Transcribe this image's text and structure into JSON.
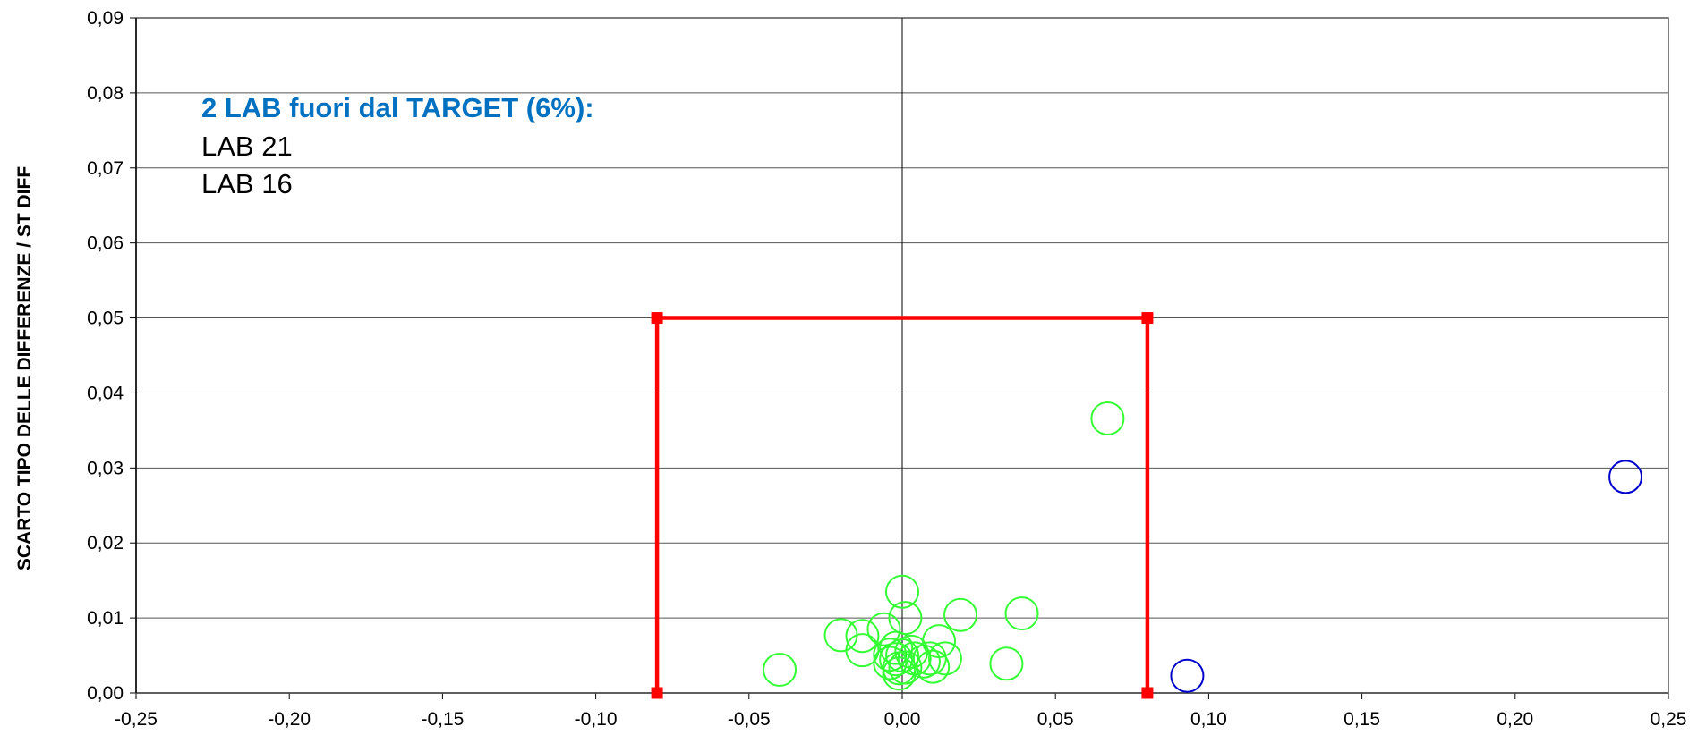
{
  "chart_data": {
    "type": "scatter",
    "title": "",
    "xlabel": "",
    "ylabel": "SCARTO TIPO DELLE DIFFERENZE / ST DIFF",
    "xlim": [
      -0.25,
      0.25
    ],
    "ylim": [
      0,
      0.09
    ],
    "xticks": [
      "-0,25",
      "-0,20",
      "-0,15",
      "-0,10",
      "-0,05",
      "0,00",
      "0,05",
      "0,10",
      "0,15",
      "0,20",
      "0,25"
    ],
    "yticks": [
      "0,00",
      "0,01",
      "0,02",
      "0,03",
      "0,04",
      "0,05",
      "0,06",
      "0,07",
      "0,08",
      "0,09"
    ],
    "grid": true,
    "target_box": {
      "color": "#FF0000",
      "points": [
        [
          -0.08,
          0
        ],
        [
          -0.08,
          0.05
        ],
        [
          0.08,
          0.05
        ],
        [
          0.08,
          0
        ]
      ]
    },
    "series": [
      {
        "color": "#33FF33",
        "points": [
          [
            -0.04,
            0.0031
          ],
          [
            -0.02,
            0.0077
          ],
          [
            -0.013,
            0.0076
          ],
          [
            -0.013,
            0.0057
          ],
          [
            -0.006,
            0.0085
          ],
          [
            -0.004,
            0.0051
          ],
          [
            -0.004,
            0.004
          ],
          [
            -0.002,
            0.006
          ],
          [
            -0.002,
            0.0045
          ],
          [
            -0.001,
            0.0033
          ],
          [
            -0.001,
            0.0026
          ],
          [
            0.0,
            0.0135
          ],
          [
            0.0,
            0.005
          ],
          [
            0.001,
            0.0034
          ],
          [
            0.001,
            0.01
          ],
          [
            0.003,
            0.0055
          ],
          [
            0.004,
            0.0046
          ],
          [
            0.007,
            0.0042
          ],
          [
            0.009,
            0.0046
          ],
          [
            0.01,
            0.0035
          ],
          [
            0.012,
            0.0069
          ],
          [
            0.014,
            0.0046
          ],
          [
            0.019,
            0.0104
          ],
          [
            0.034,
            0.0039
          ],
          [
            0.039,
            0.0106
          ],
          [
            0.067,
            0.0366
          ]
        ]
      },
      {
        "color": "#0000CC",
        "points": [
          [
            0.093,
            0.0023
          ],
          [
            0.236,
            0.0288
          ]
        ]
      }
    ],
    "annotation": {
      "heading": "2  LAB fuori dal TARGET (6%):",
      "lines": [
        "LAB 21",
        "LAB 16"
      ]
    }
  }
}
